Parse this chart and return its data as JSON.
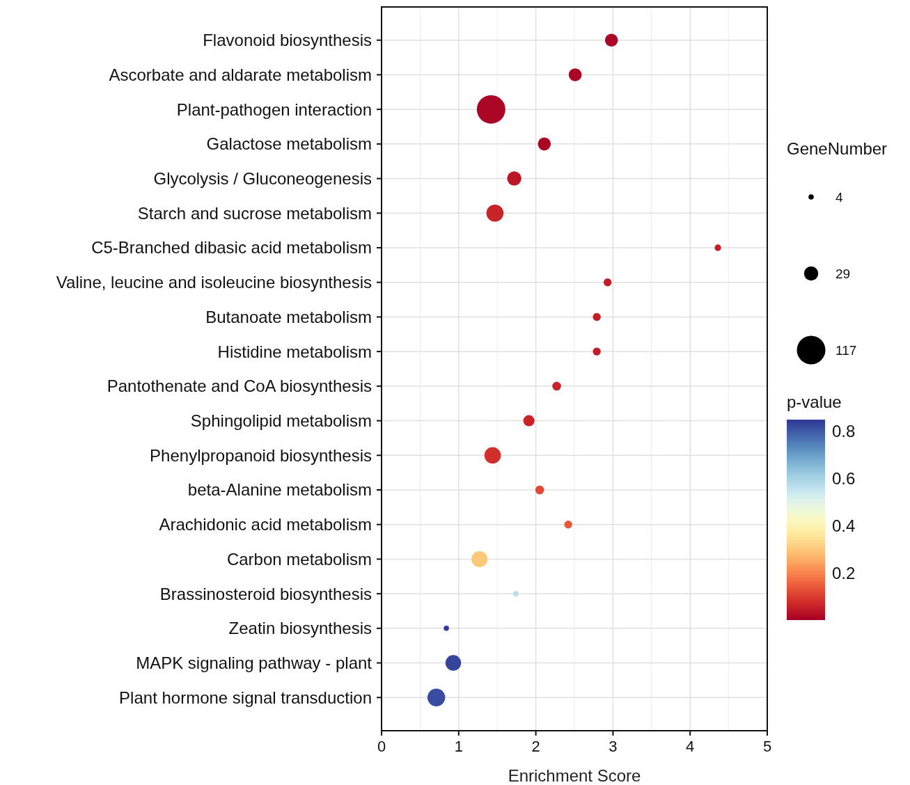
{
  "chart_data": {
    "type": "bubble",
    "orientation": "horizontal",
    "xlabel": "Enrichment Score",
    "categories": [
      "Flavonoid biosynthesis",
      "Ascorbate and aldarate metabolism",
      "Plant-pathogen interaction",
      "Galactose metabolism",
      "Glycolysis / Gluconeogenesis",
      "Starch and sucrose metabolism",
      "C5-Branched dibasic acid metabolism",
      "Valine, leucine and isoleucine biosynthesis",
      "Butanoate metabolism",
      "Histidine metabolism",
      "Pantothenate and CoA biosynthesis",
      "Sphingolipid metabolism",
      "Phenylpropanoid biosynthesis",
      "beta-Alanine metabolism",
      "Arachidonic acid metabolism",
      "Carbon metabolism",
      "Brassinosteroid biosynthesis",
      "Zeatin biosynthesis",
      "MAPK signaling pathway - plant",
      "Plant hormone signal transduction"
    ],
    "values": [
      2.98,
      2.51,
      1.42,
      2.11,
      1.72,
      1.47,
      4.36,
      2.93,
      2.79,
      2.79,
      2.27,
      1.91,
      1.44,
      2.05,
      2.42,
      1.27,
      1.74,
      0.84,
      0.93,
      0.71
    ],
    "sizes": [
      24,
      24,
      117,
      24,
      29,
      42,
      6,
      9,
      9,
      9,
      11,
      18,
      39,
      11,
      9,
      37,
      4,
      4,
      35,
      45
    ],
    "cvalues": [
      0.01,
      0.01,
      0.01,
      0.01,
      0.04,
      0.06,
      0.05,
      0.05,
      0.05,
      0.05,
      0.06,
      0.06,
      0.08,
      0.12,
      0.14,
      0.3,
      0.58,
      0.84,
      0.83,
      0.82
    ],
    "size_legend": [
      4,
      29,
      117
    ],
    "legend_title": "GeneNumber",
    "clabel": "p-value",
    "clim": [
      0,
      0.85
    ],
    "cticks": [
      0.2,
      0.4,
      0.6,
      0.8
    ],
    "xlim": [
      0,
      5
    ],
    "xticks": [
      0,
      1,
      2,
      3,
      4,
      5
    ],
    "grid": true
  }
}
